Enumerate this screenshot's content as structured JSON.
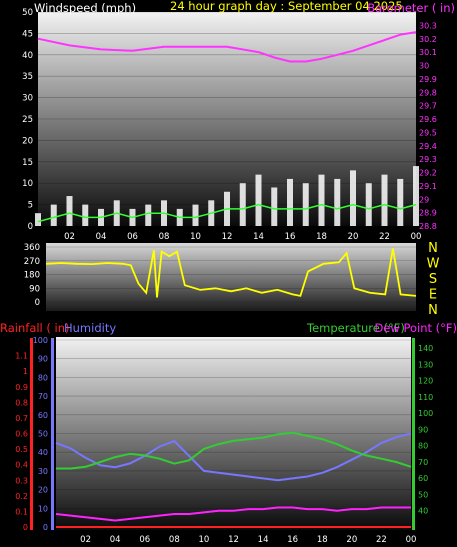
{
  "colors": {
    "background": "#000000",
    "wind_label": "#ffffff",
    "title": "#ffff00",
    "barometer": "#ff33ff",
    "gust": "#ffffff",
    "speed": "#33ff33",
    "direction": "#ffff00",
    "rainfall": "#ff2222",
    "humidity": "#7777ff",
    "temperature": "#33cc33",
    "dew_point": "#ff22ff",
    "tick_text": "#ffffff"
  },
  "chart_data": [
    {
      "type": "line",
      "title": "24 hour graph day : September 04 2025",
      "xlabel": "",
      "x_ticks": [
        "02",
        "04",
        "06",
        "08",
        "10",
        "12",
        "14",
        "16",
        "18",
        "20",
        "22",
        "00"
      ],
      "xlim": [
        0,
        24
      ],
      "ylabel_left": "Windspeed (mph)",
      "ylabel_right": "Barometer ( in)",
      "ylim_left": [
        0,
        50
      ],
      "ylim_right": [
        28.8,
        30.4
      ],
      "y_ticks_left": [
        "0",
        "5",
        "10",
        "15",
        "20",
        "25",
        "30",
        "35",
        "40",
        "45",
        "50"
      ],
      "y_ticks_right": [
        "28.8",
        "28.9",
        "29",
        "29.1",
        "29.2",
        "29.3",
        "29.4",
        "29.5",
        "29.6",
        "29.7",
        "29.8",
        "29.9",
        "30",
        "30.1",
        "30.2",
        "30.3"
      ],
      "series": [
        {
          "name": "Barometer",
          "axis": "right",
          "x": [
            0,
            2,
            4,
            6,
            8,
            10,
            12,
            14,
            15,
            16,
            17,
            18,
            20,
            22,
            23,
            24
          ],
          "values": [
            30.2,
            30.15,
            30.12,
            30.11,
            30.14,
            30.14,
            30.14,
            30.1,
            30.06,
            30.03,
            30.03,
            30.05,
            30.11,
            30.19,
            30.23,
            30.25
          ]
        },
        {
          "name": "Wind gust",
          "axis": "left",
          "x": [
            0,
            1,
            2,
            3,
            4,
            5,
            6,
            7,
            8,
            9,
            10,
            11,
            12,
            13,
            14,
            15,
            16,
            17,
            18,
            19,
            20,
            21,
            22,
            23,
            24
          ],
          "values": [
            3,
            5,
            7,
            5,
            4,
            6,
            4,
            5,
            6,
            4,
            5,
            6,
            8,
            10,
            12,
            9,
            11,
            10,
            12,
            11,
            13,
            10,
            12,
            11,
            14
          ]
        },
        {
          "name": "Wind speed",
          "axis": "left",
          "x": [
            0,
            1,
            2,
            3,
            4,
            5,
            6,
            7,
            8,
            9,
            10,
            11,
            12,
            13,
            14,
            15,
            16,
            17,
            18,
            19,
            20,
            21,
            22,
            23,
            24
          ],
          "values": [
            1,
            2,
            3,
            2,
            2,
            3,
            2,
            3,
            3,
            2,
            2,
            3,
            4,
            4,
            5,
            4,
            4,
            4,
            5,
            4,
            5,
            4,
            5,
            4,
            5
          ]
        }
      ]
    },
    {
      "type": "line",
      "ylim": [
        0,
        360
      ],
      "y_ticks": [
        "0",
        "90",
        "180",
        "270",
        "360"
      ],
      "compass_labels": [
        "N",
        "W",
        "S",
        "E",
        "N"
      ],
      "xlim": [
        0,
        24
      ],
      "series": [
        {
          "name": "Wind direction",
          "x": [
            0,
            1,
            2,
            3,
            4,
            5,
            5.5,
            6,
            6.5,
            7,
            7.2,
            7.5,
            8,
            8.5,
            9,
            10,
            11,
            12,
            13,
            14,
            15,
            16,
            16.5,
            17,
            18,
            19,
            19.5,
            20,
            21,
            22,
            22.5,
            23,
            24
          ],
          "values": [
            250,
            255,
            250,
            248,
            255,
            250,
            240,
            120,
            60,
            340,
            30,
            330,
            300,
            330,
            110,
            80,
            90,
            70,
            90,
            60,
            80,
            50,
            40,
            200,
            250,
            260,
            320,
            90,
            60,
            50,
            350,
            50,
            40
          ]
        }
      ]
    },
    {
      "type": "line",
      "xlim": [
        0,
        24
      ],
      "x_ticks": [
        "02",
        "04",
        "06",
        "08",
        "10",
        "12",
        "14",
        "16",
        "18",
        "20",
        "22",
        "00"
      ],
      "label_rainfall": "Rainfall ( in)",
      "label_humidity": "Humidity",
      "label_temperature": "Temperature  (°F)",
      "label_dew_point": "Dew Point (°F)",
      "ylim_rain": [
        0,
        1.2
      ],
      "y_ticks_rain": [
        "0",
        "0.1",
        "0.2",
        "0.3",
        "0.4",
        "0.5",
        "0.6",
        "0.7",
        "0.8",
        "0.9",
        "1",
        "1.1"
      ],
      "ylim_humidity": [
        0,
        100
      ],
      "y_ticks_humidity": [
        "0",
        "10",
        "20",
        "30",
        "40",
        "50",
        "60",
        "70",
        "80",
        "90",
        "100"
      ],
      "ylim_temp": [
        30,
        145
      ],
      "y_ticks_temp": [
        "40",
        "50",
        "60",
        "70",
        "80",
        "90",
        "100",
        "110",
        "120",
        "130",
        "140"
      ],
      "series": [
        {
          "name": "Humidity",
          "axis": "humidity",
          "x": [
            0,
            1,
            2,
            3,
            4,
            5,
            6,
            7,
            8,
            9,
            10,
            11,
            12,
            13,
            14,
            15,
            16,
            17,
            18,
            19,
            20,
            21,
            22,
            23,
            24
          ],
          "values": [
            45,
            42,
            37,
            33,
            32,
            34,
            38,
            43,
            46,
            38,
            30,
            29,
            28,
            27,
            26,
            25,
            26,
            27,
            29,
            32,
            36,
            40,
            45,
            48,
            50
          ]
        },
        {
          "name": "Temperature",
          "axis": "temp",
          "x": [
            0,
            1,
            2,
            3,
            4,
            5,
            6,
            7,
            8,
            9,
            10,
            11,
            12,
            13,
            14,
            15,
            16,
            17,
            18,
            19,
            20,
            21,
            22,
            23,
            24
          ],
          "values": [
            66,
            66,
            67,
            70,
            73,
            75,
            74,
            72,
            69,
            71,
            78,
            81,
            83,
            84,
            85,
            87,
            88,
            86,
            84,
            81,
            77,
            74,
            72,
            70,
            67
          ]
        },
        {
          "name": "Dew Point",
          "axis": "temp",
          "x": [
            0,
            1,
            2,
            3,
            4,
            5,
            6,
            7,
            8,
            9,
            10,
            11,
            12,
            13,
            14,
            15,
            16,
            17,
            18,
            19,
            20,
            21,
            22,
            23,
            24
          ],
          "values": [
            38,
            37,
            36,
            35,
            34,
            35,
            36,
            37,
            38,
            38,
            39,
            40,
            40,
            41,
            41,
            42,
            42,
            41,
            41,
            40,
            41,
            41,
            42,
            42,
            42
          ]
        },
        {
          "name": "Rainfall",
          "axis": "rain",
          "x": [
            0,
            24
          ],
          "values": [
            0,
            0
          ]
        }
      ]
    }
  ]
}
